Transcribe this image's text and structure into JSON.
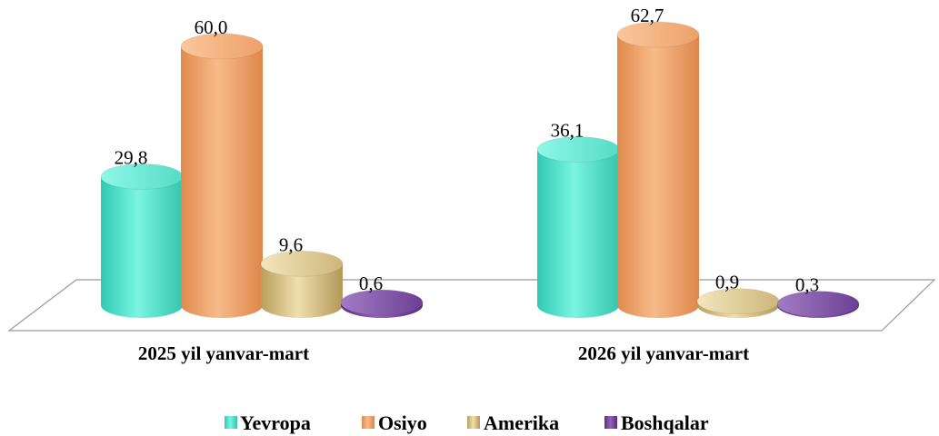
{
  "chart_data": {
    "type": "bar",
    "style": "3d-cylinder",
    "categories": [
      "2025 yil yanvar-mart",
      "2026 yil yanvar-mart"
    ],
    "series": [
      {
        "name": "Yevropa",
        "values": [
          29.8,
          36.1
        ],
        "labels": [
          "29,8",
          "36,1"
        ],
        "color": "#5fe8d2"
      },
      {
        "name": "Osiyo",
        "values": [
          60.0,
          62.7
        ],
        "labels": [
          "60,0",
          "62,7"
        ],
        "color": "#f2a36a"
      },
      {
        "name": "Amerika",
        "values": [
          9.6,
          0.9
        ],
        "labels": [
          "9,6",
          "0,9"
        ],
        "color": "#d9c58c"
      },
      {
        "name": "Boshqalar",
        "values": [
          0.6,
          0.3
        ],
        "labels": [
          "0,6",
          "0,3"
        ],
        "color": "#7a4aa0"
      }
    ],
    "legend_position": "bottom",
    "grid": false,
    "ylim": [
      0,
      65
    ]
  }
}
